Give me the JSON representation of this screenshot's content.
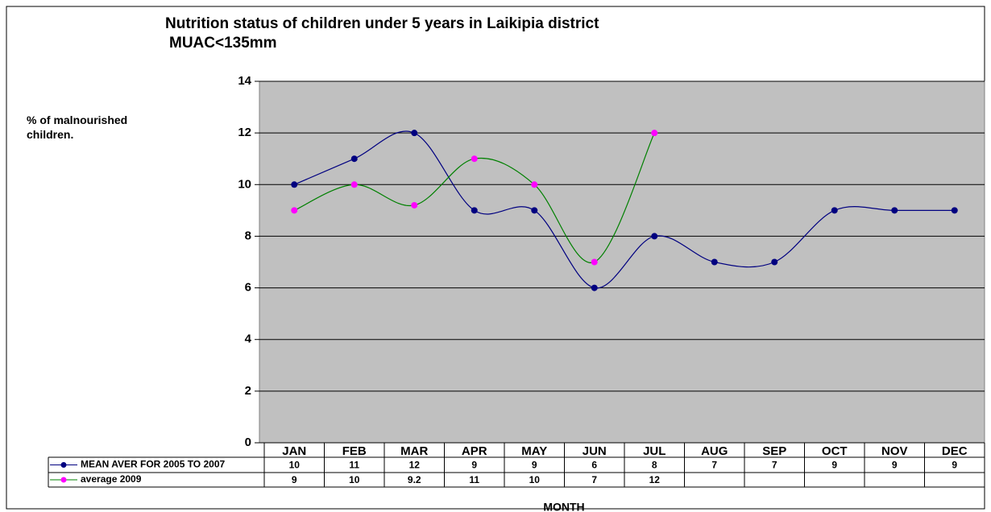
{
  "chart_data": {
    "type": "line",
    "title": "Nutrition status of children under 5 years in Laikipia district",
    "subtitle": "MUAC<135mm",
    "y_label": "% of malnourished children.",
    "x_label": "MONTH",
    "categories": [
      "JAN",
      "FEB",
      "MAR",
      "APR",
      "MAY",
      "JUN",
      "JUL",
      "AUG",
      "SEP",
      "OCT",
      "NOV",
      "DEC"
    ],
    "series": [
      {
        "name": "MEAN AVER FOR 2005 TO 2007",
        "line_color": "#000080",
        "marker_color": "#000080",
        "values": [
          10,
          11,
          12,
          9,
          9,
          6,
          8,
          7,
          7,
          9,
          9,
          9
        ]
      },
      {
        "name": "average 2009",
        "line_color": "#008000",
        "marker_color": "#ff00ff",
        "values": [
          9,
          10,
          9.2,
          11,
          10,
          7,
          12,
          null,
          null,
          null,
          null,
          null
        ]
      }
    ],
    "ylim": [
      0,
      14
    ],
    "yticks": [
      0,
      2,
      4,
      6,
      8,
      10,
      12,
      14
    ],
    "grid": true,
    "smooth": true,
    "plot_color": "#c0c0c0"
  }
}
